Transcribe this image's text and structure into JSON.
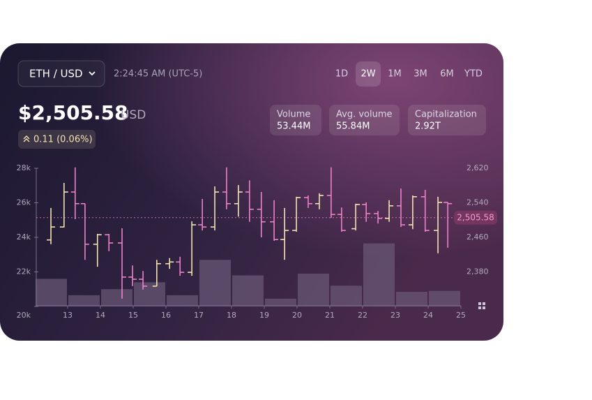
{
  "header": {
    "pair": "ETH / USD",
    "time": "2:24:45 AM (UTC-5)",
    "ranges": [
      "1D",
      "2W",
      "1M",
      "3M",
      "6M",
      "YTD"
    ],
    "active_range_index": 1,
    "price": "$2,505.58",
    "currency": "USD",
    "change": "0.11 (0.06%)",
    "stats": [
      {
        "label": "Volume",
        "value": "53.44M"
      },
      {
        "label": "Avg. volume",
        "value": "55.84M"
      },
      {
        "label": "Capitalization",
        "value": "2.92T"
      }
    ]
  },
  "chart_data": {
    "type": "ohlc",
    "x": [
      12.49,
      12.89,
      13.23,
      13.53,
      13.91,
      14.26,
      14.66,
      14.98,
      15.3,
      15.72,
      16.11,
      16.43,
      16.79,
      17.11,
      17.49,
      17.85,
      18.21,
      18.55,
      18.91,
      19.3,
      19.62,
      19.98,
      20.34,
      20.68,
      21.04,
      21.36,
      21.79,
      22.11,
      22.47,
      22.81,
      23.17,
      23.53,
      23.91,
      24.3,
      24.6
    ],
    "open": [
      2454,
      2484,
      2565,
      2538,
      2444,
      2466,
      2447,
      2368,
      2363,
      2347,
      2399,
      2403,
      2379,
      2489,
      2484,
      2565,
      2538,
      2565,
      2525,
      2496,
      2455,
      2476,
      2552,
      2538,
      2557,
      2513,
      2480,
      2536,
      2515,
      2504,
      2533,
      2489,
      2554,
      2476,
      2541
    ],
    "high": [
      2528,
      2586,
      2622,
      2538,
      2468,
      2468,
      2481,
      2395,
      2382,
      2408,
      2412,
      2415,
      2497,
      2549,
      2578,
      2622,
      2581,
      2592,
      2565,
      2546,
      2528,
      2554,
      2557,
      2562,
      2622,
      2529,
      2538,
      2541,
      2521,
      2546,
      2573,
      2557,
      2570,
      2554,
      2541
    ],
    "low": [
      2444,
      2483,
      2502,
      2408,
      2392,
      2428,
      2318,
      2347,
      2339,
      2347,
      2387,
      2371,
      2371,
      2476,
      2476,
      2525,
      2508,
      2496,
      2460,
      2452,
      2408,
      2473,
      2528,
      2525,
      2505,
      2473,
      2476,
      2496,
      2492,
      2496,
      2484,
      2479,
      2473,
      2423,
      2436
    ],
    "close": [
      2484,
      2565,
      2538,
      2444,
      2466,
      2447,
      2368,
      2363,
      2347,
      2399,
      2403,
      2379,
      2489,
      2484,
      2565,
      2538,
      2565,
      2525,
      2496,
      2455,
      2476,
      2552,
      2538,
      2557,
      2513,
      2476,
      2536,
      2515,
      2504,
      2533,
      2489,
      2554,
      2476,
      2541,
      2538
    ],
    "up_color": "#f3e4b2",
    "down_color": "#ee82c8",
    "volume": {
      "x": [
        12,
        13,
        14,
        15,
        16,
        17,
        18,
        19,
        20,
        21,
        22,
        23,
        24
      ],
      "values": [
        21600,
        20650,
        21000,
        21400,
        20650,
        22700,
        21800,
        20450,
        21900,
        21200,
        23650,
        20850,
        20900
      ],
      "color": "#6b5a78",
      "axis": "y2"
    },
    "current": {
      "value": 2505.58,
      "label": "2,505.58"
    },
    "xlim": [
      12,
      25
    ],
    "xticks": [
      13,
      14,
      15,
      16,
      17,
      18,
      19,
      20,
      21,
      22,
      23,
      24,
      25
    ],
    "ylim": [
      2300,
      2620
    ],
    "yticks": [
      {
        "value": 2380,
        "label": "2,380"
      },
      {
        "value": 2460,
        "label": "2,460"
      },
      {
        "value": 2540,
        "label": "2,540"
      },
      {
        "value": 2620,
        "label": "2,620"
      }
    ],
    "y2lim": [
      20000,
      28000
    ],
    "y2ticks": [
      {
        "value": 20000,
        "label": "20k"
      },
      {
        "value": 22000,
        "label": "22k"
      },
      {
        "value": 24000,
        "label": "24k"
      },
      {
        "value": 26000,
        "label": "26k"
      },
      {
        "value": 28000,
        "label": "28k"
      }
    ]
  }
}
